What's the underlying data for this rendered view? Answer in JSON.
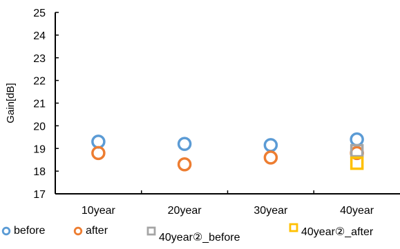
{
  "chart_data": {
    "type": "scatter",
    "title": "",
    "xlabel": "",
    "ylabel": "Gain[dB]",
    "categories": [
      "10year",
      "20year",
      "30year",
      "40year"
    ],
    "ylim": [
      17,
      25
    ],
    "yticks": [
      17,
      18,
      19,
      20,
      21,
      22,
      23,
      24,
      25
    ],
    "grid": false,
    "legend_position": "bottom",
    "series": [
      {
        "name": "before",
        "color": "#5B9BD5",
        "marker": "circle",
        "values": [
          19.3,
          19.2,
          19.15,
          19.4
        ]
      },
      {
        "name": "after",
        "color": "#ED7D31",
        "marker": "circle",
        "values": [
          18.8,
          18.3,
          18.6,
          18.8
        ]
      },
      {
        "name": "40year②_before",
        "color": "#A5A5A5",
        "marker": "square",
        "values": [
          null,
          null,
          null,
          18.9
        ]
      },
      {
        "name": "40year②_after",
        "color": "#FFC000",
        "marker": "square",
        "values": [
          null,
          null,
          null,
          18.35
        ]
      }
    ]
  }
}
